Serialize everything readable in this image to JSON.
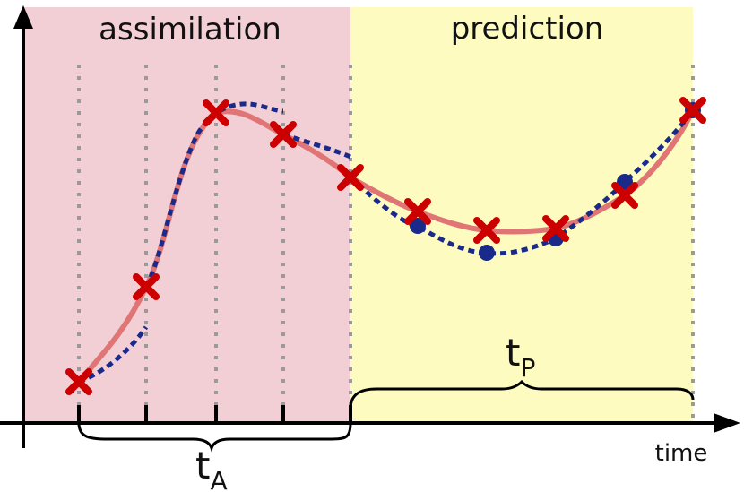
{
  "labels": {
    "assimilation": "assimilation",
    "prediction": "prediction",
    "time_axis": "time",
    "assimilation_window": {
      "letter": "t",
      "subscript": "A"
    },
    "prediction_window": {
      "letter": "t",
      "subscript": "P"
    }
  },
  "colors": {
    "assimilation_bg": "#f2cfd4",
    "prediction_bg": "#fdfbbf",
    "truth_curve": "#e07575",
    "model_curve": "#1a2a8a",
    "observation_marker": "#cc0000",
    "forecast_marker": "#1a2a8a",
    "grid_dots": "#9a9a9a",
    "axis": "#000000"
  },
  "icons": {
    "observation": "x-mark",
    "forecast": "filled-circle"
  }
}
